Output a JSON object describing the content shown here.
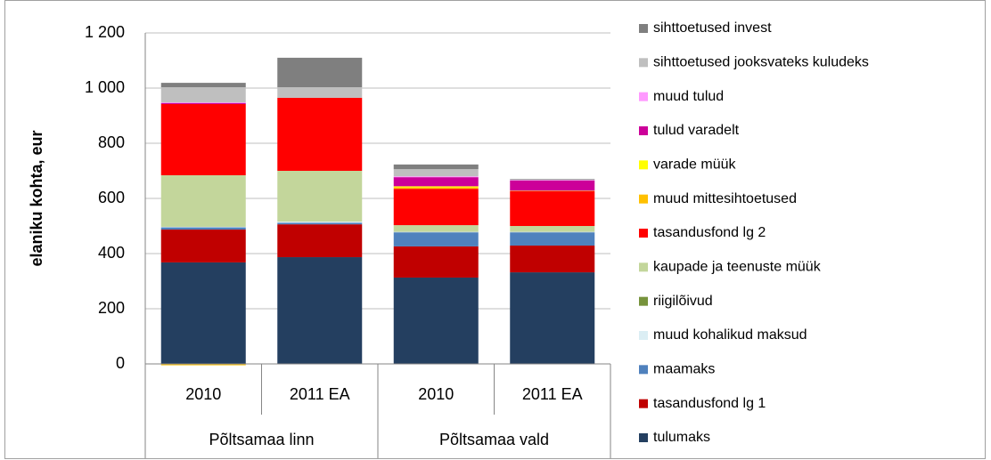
{
  "chart_data": {
    "type": "stacked_bar",
    "ylabel": "elaniku kohta, eur",
    "categories": [
      "2010",
      "2011 EA",
      "2010",
      "2011 EA"
    ],
    "groups": [
      {
        "name": "Põltsamaa linn",
        "count": 2
      },
      {
        "name": "Põltsamaa vald",
        "count": 2
      }
    ],
    "ylim": [
      0,
      1200
    ],
    "yticks": [
      0,
      200,
      400,
      600,
      800,
      {
        "value": 1000,
        "label": "1 000"
      },
      {
        "value": 1200,
        "label": "1 200"
      }
    ],
    "grid": true,
    "legend": "right",
    "series": [
      {
        "name": "tulumaks",
        "color": "#243f60",
        "values": [
          368,
          387,
          313,
          332
        ]
      },
      {
        "name": "tasandusfond lg 1",
        "color": "#c00000",
        "values": [
          119,
          119,
          113,
          97
        ]
      },
      {
        "name": "maamaks",
        "color": "#4f81bd",
        "values": [
          8,
          6,
          51,
          48
        ]
      },
      {
        "name": "muud kohalikud maksud",
        "color": "#dbeef4",
        "values": [
          2,
          4,
          2,
          2
        ]
      },
      {
        "name": "riigilõivud",
        "color": "#77933c",
        "values": [
          0,
          0,
          1,
          1
        ]
      },
      {
        "name": "kaupade ja teenuste müük",
        "color": "#c3d69b",
        "values": [
          187,
          184,
          23,
          20
        ]
      },
      {
        "name": "tasandusfond lg 2",
        "color": "#ff0000",
        "values": [
          258,
          265,
          132,
          126
        ]
      },
      {
        "name": "muud mittesihtoetused",
        "color": "#ffc000",
        "values": [
          -5,
          0,
          5,
          2
        ]
      },
      {
        "name": "varade müük",
        "color": "#ffff00",
        "values": [
          0,
          0,
          4,
          0
        ]
      },
      {
        "name": "tulud varadelt",
        "color": "#cc0099",
        "values": [
          4,
          0,
          33,
          37
        ]
      },
      {
        "name": "muud tulud",
        "color": "#ff99ff",
        "values": [
          2,
          0,
          3,
          2
        ]
      },
      {
        "name": "sihttoetused jooksvateks kuludeks",
        "color": "#bfbfbf",
        "values": [
          55,
          38,
          26,
          0
        ]
      },
      {
        "name": "sihttoetused invest",
        "color": "#7f7f7f",
        "values": [
          16,
          107,
          17,
          3
        ]
      }
    ]
  }
}
